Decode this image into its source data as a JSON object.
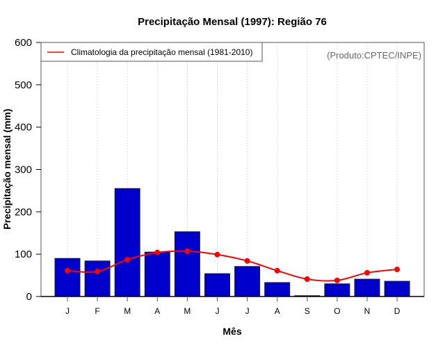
{
  "chart_data": {
    "type": "bar",
    "title": "Precipitação Mensal (1997): Região 76",
    "xlabel": "Mês",
    "ylabel": "Precipitação mensal (mm)",
    "ylim": [
      0,
      600
    ],
    "yticks": [
      0,
      100,
      200,
      300,
      400,
      500,
      600
    ],
    "categories": [
      "J",
      "F",
      "M",
      "A",
      "M",
      "J",
      "J",
      "A",
      "S",
      "O",
      "N",
      "D"
    ],
    "grid": "vertical dotted at each month",
    "legend_position": "top-left",
    "credit": "(Produto:CPTEC/INPE)",
    "series": [
      {
        "name": "Precipitação mensal 1997",
        "type": "bar",
        "color": "#0000CD",
        "values": [
          90,
          84,
          255,
          105,
          153,
          54,
          71,
          33,
          2,
          30,
          41,
          36
        ]
      },
      {
        "name": "Climatologia da precipitação mensal (1981-2010)",
        "type": "line",
        "color": "#FF0000",
        "values": [
          61,
          59,
          87,
          104,
          107,
          99,
          84,
          61,
          41,
          38,
          56,
          64
        ]
      }
    ]
  }
}
